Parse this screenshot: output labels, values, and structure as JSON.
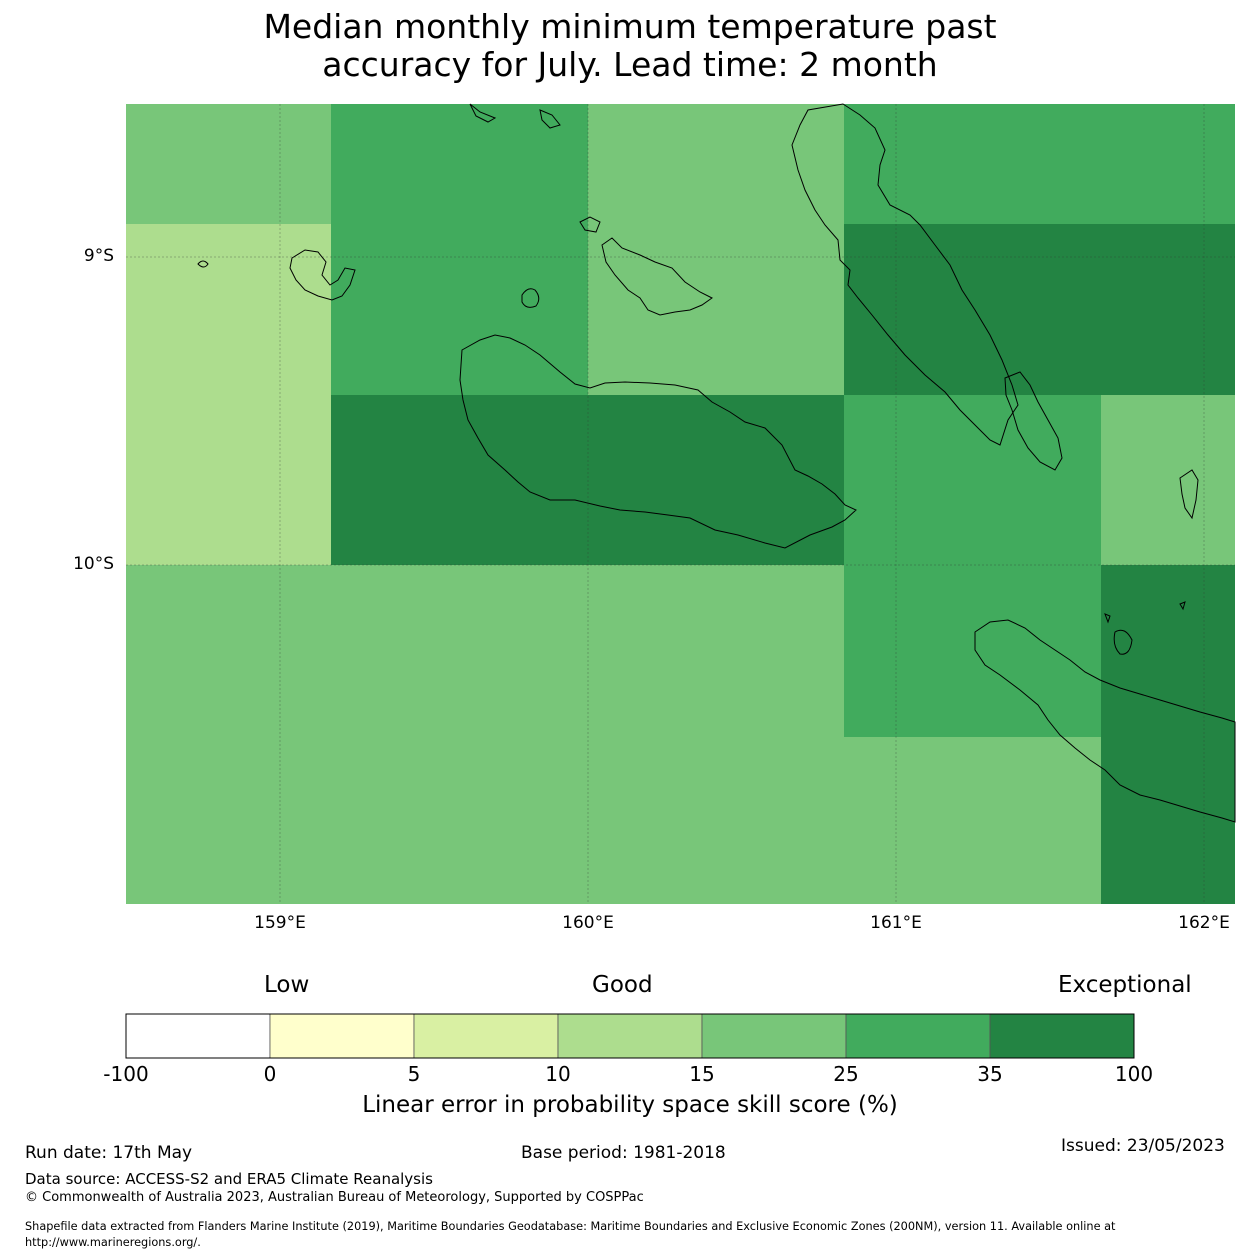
{
  "title_line1": "Median monthly minimum temperature past",
  "title_line2": "accuracy for July. Lead time: 2 month",
  "map": {
    "lat_labels": [
      "9°S",
      "10°S"
    ],
    "lon_labels": [
      "159°E",
      "160°E",
      "161°E",
      "162°E"
    ],
    "grid_colors": {
      "c10_15": "#addd8e",
      "c15_25": "#78c679",
      "c25_35": "#41ab5d",
      "c35_100": "#238443"
    },
    "cells": [
      [
        "c15_25",
        "c25_35",
        "c15_25",
        "c25_35",
        "c25_35"
      ],
      [
        "c10_15",
        "c25_35",
        "c15_25",
        "c35_100",
        "c35_100"
      ],
      [
        "c10_15",
        "c35_100",
        "c35_100",
        "c25_35",
        "c15_25"
      ],
      [
        "c15_25",
        "c15_25",
        "c15_25",
        "c25_35",
        "c35_100"
      ],
      [
        "c15_25",
        "c15_25",
        "c15_25",
        "c15_25",
        "c35_100"
      ]
    ]
  },
  "colorbar": {
    "categories": {
      "low": "Low",
      "good": "Good",
      "exceptional": "Exceptional"
    },
    "segments": [
      {
        "from": "-100",
        "to": "0",
        "color": "#ffffff"
      },
      {
        "from": "0",
        "to": "5",
        "color": "#ffffcc"
      },
      {
        "from": "5",
        "to": "10",
        "color": "#d9f0a3"
      },
      {
        "from": "10",
        "to": "15",
        "color": "#addd8e"
      },
      {
        "from": "15",
        "to": "25",
        "color": "#78c679"
      },
      {
        "from": "25",
        "to": "35",
        "color": "#41ab5d"
      },
      {
        "from": "35",
        "to": "100",
        "color": "#238443"
      }
    ],
    "ticks": [
      "-100",
      "0",
      "5",
      "10",
      "15",
      "25",
      "35",
      "100"
    ],
    "label": "Linear error in probability space skill score (%)"
  },
  "footer": {
    "run_date": "Run date: 17th May",
    "base_period": "Base period: 1981-2018",
    "issued": "Issued: 23/05/2023",
    "data_source": "Data source: ACCESS-S2 and ERA5 Climate Reanalysis",
    "copyright": "© Commonwealth of Australia 2023, Australian Bureau of Meteorology, Supported by COSPPac",
    "shapefile_line1": "Shapefile data extracted from Flanders Marine Institute (2019), Maritime Boundaries Geodatabase: Maritime Boundaries and Exclusive Economic Zones (200NM), version 11. Available online at",
    "shapefile_line2": "http://www.marineregions.org/."
  }
}
